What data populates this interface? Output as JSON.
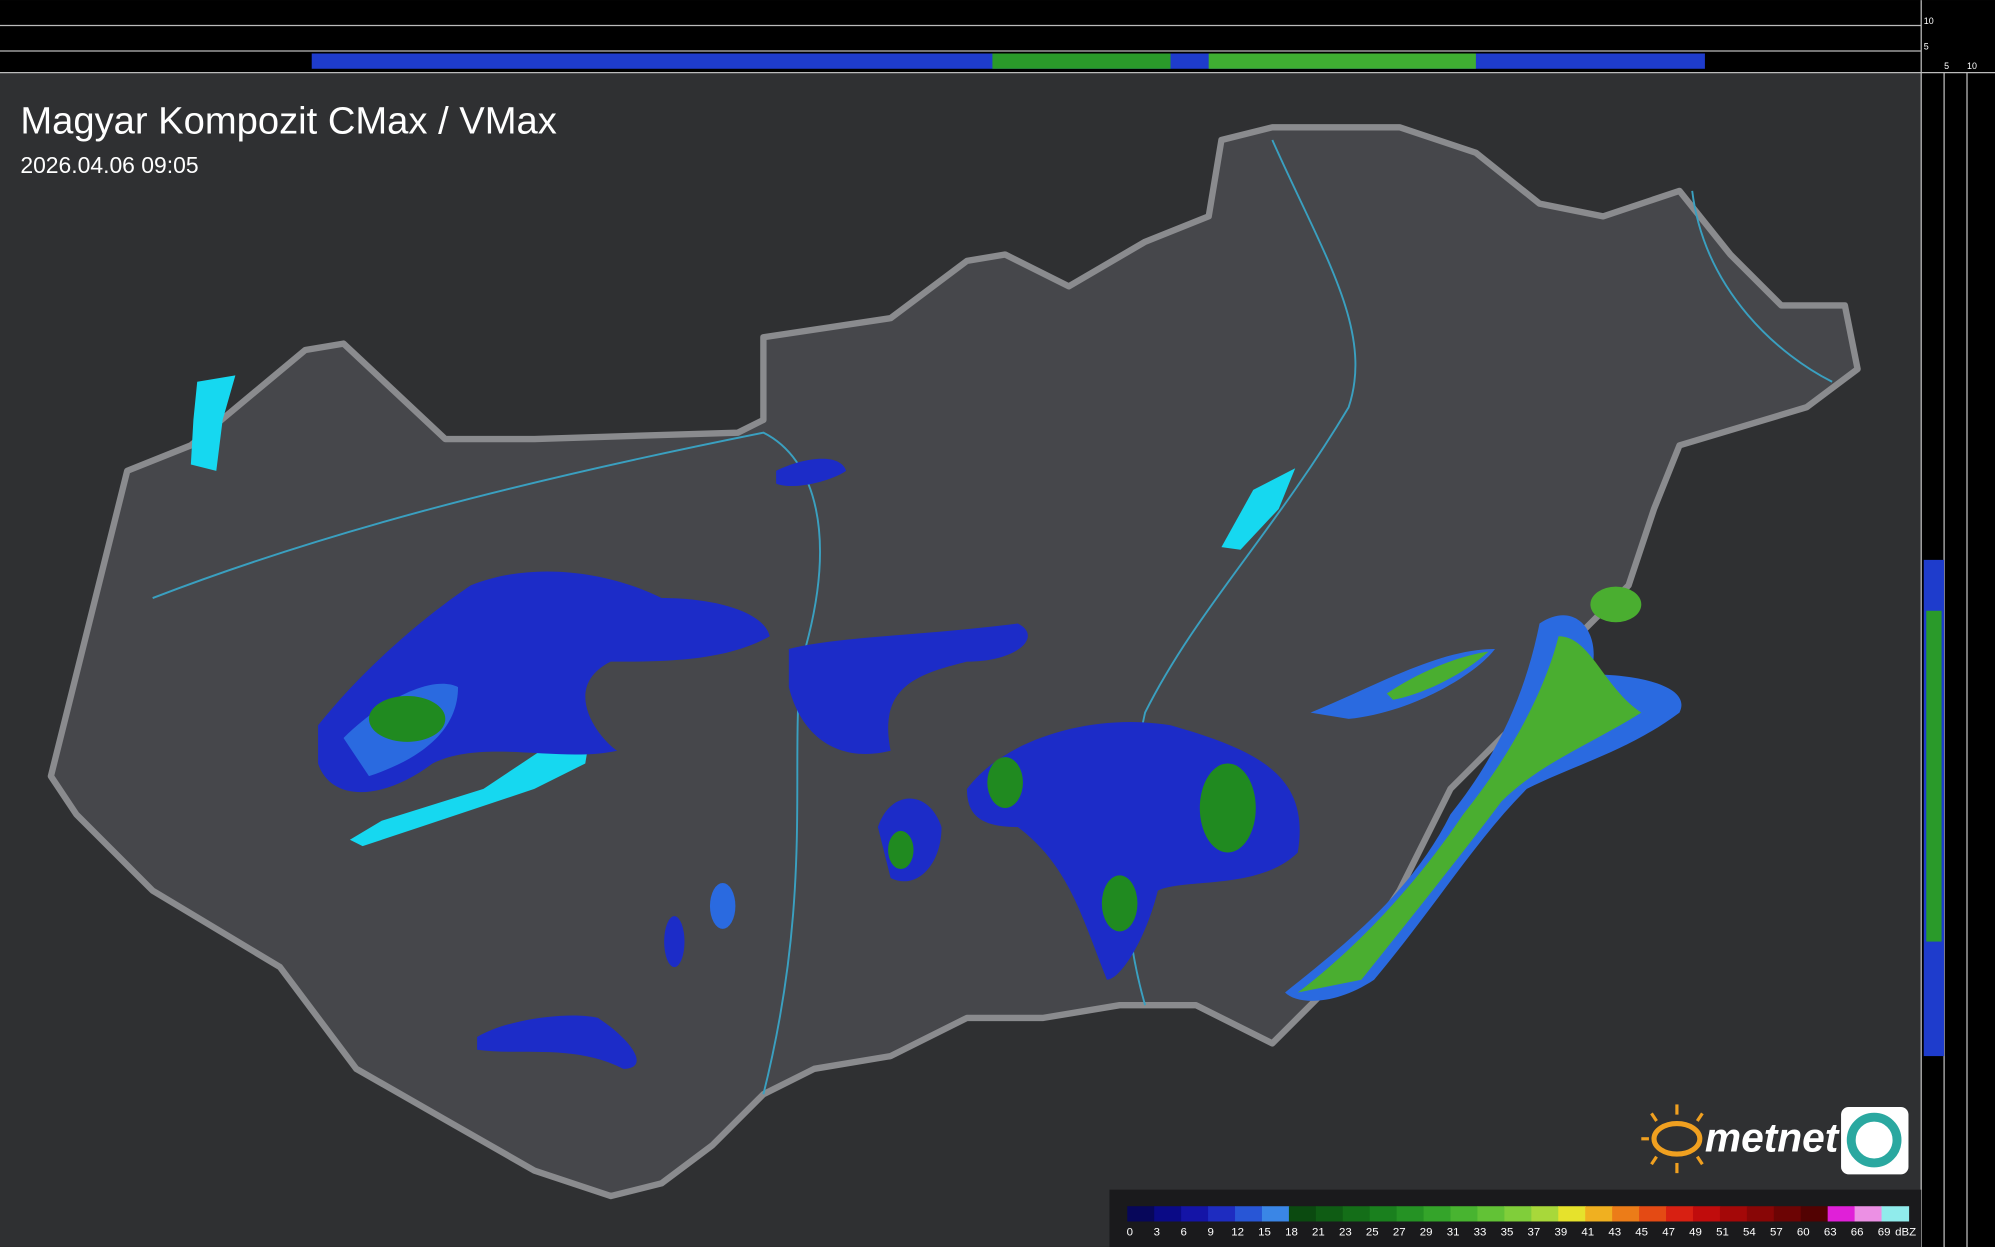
{
  "header": {
    "title": "Magyar Kompozit CMax / VMax",
    "timestamp": "2026.04.06 09:05"
  },
  "side_scale": {
    "top": [
      "10",
      "5"
    ],
    "bottom": [
      "5",
      "10"
    ]
  },
  "brand": "metnet",
  "legend": {
    "unit": "dBZ",
    "steps": [
      {
        "value": 0,
        "color": "#07075a"
      },
      {
        "value": 3,
        "color": "#0a0a86"
      },
      {
        "value": 6,
        "color": "#1414a6"
      },
      {
        "value": 9,
        "color": "#1e2cc0"
      },
      {
        "value": 12,
        "color": "#2856d6"
      },
      {
        "value": 15,
        "color": "#3a86e6"
      },
      {
        "value": 18,
        "color": "#0b4a10"
      },
      {
        "value": 21,
        "color": "#0f5c14"
      },
      {
        "value": 23,
        "color": "#146e18"
      },
      {
        "value": 25,
        "color": "#1a801e"
      },
      {
        "value": 27,
        "color": "#259224"
      },
      {
        "value": 29,
        "color": "#34a42a"
      },
      {
        "value": 31,
        "color": "#48b430"
      },
      {
        "value": 33,
        "color": "#62c236"
      },
      {
        "value": 35,
        "color": "#80ce3a"
      },
      {
        "value": 37,
        "color": "#a8d83a"
      },
      {
        "value": 39,
        "color": "#e6e22c"
      },
      {
        "value": 41,
        "color": "#f0b020"
      },
      {
        "value": 43,
        "color": "#ec7c18"
      },
      {
        "value": 45,
        "color": "#e44a14"
      },
      {
        "value": 47,
        "color": "#d82012"
      },
      {
        "value": 49,
        "color": "#c00c0c"
      },
      {
        "value": 51,
        "color": "#a40808"
      },
      {
        "value": 54,
        "color": "#880606"
      },
      {
        "value": 57,
        "color": "#6c0404"
      },
      {
        "value": 60,
        "color": "#520202"
      },
      {
        "value": 63,
        "color": "#e020d8"
      },
      {
        "value": 66,
        "color": "#ec90e4"
      },
      {
        "value": 69,
        "color": "#90ecec"
      }
    ]
  }
}
